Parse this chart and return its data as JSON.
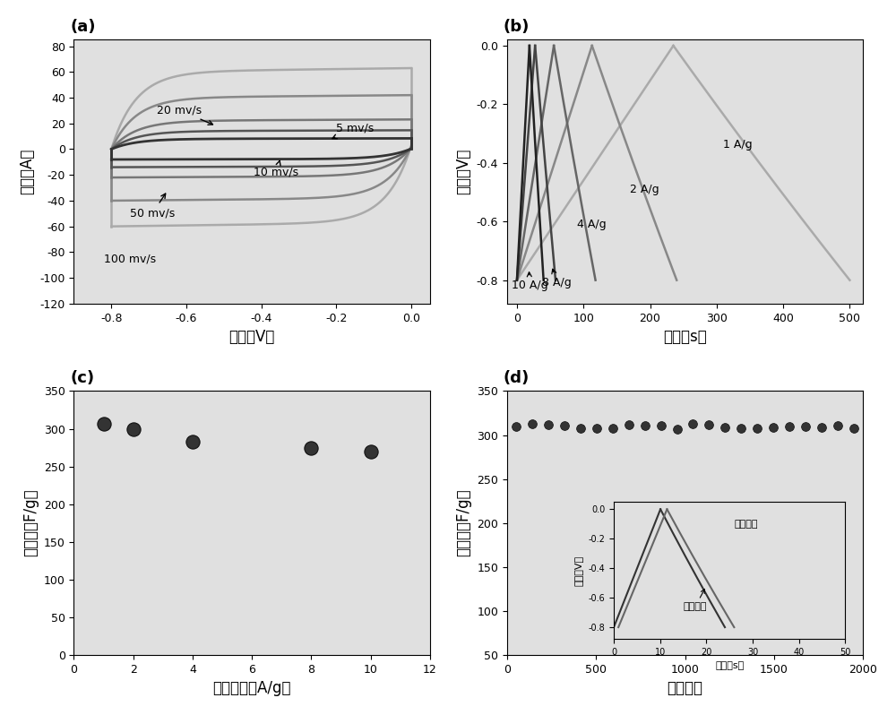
{
  "panel_a": {
    "title": "(a)",
    "xlabel": "电压（V）",
    "ylabel": "电流（A）",
    "xlim": [
      -0.9,
      0.05
    ],
    "ylim": [
      -120,
      85
    ],
    "yticks": [
      80,
      60,
      40,
      20,
      0,
      -20,
      -40,
      -60,
      -80,
      -100,
      -120
    ],
    "xticks": [
      -0.8,
      -0.6,
      -0.4,
      -0.2,
      0.0
    ],
    "scan_rates": [
      5,
      10,
      20,
      50,
      100
    ],
    "labels": [
      "5 mv/s",
      "10 mv/s",
      "20 mv/s",
      "50 mv/s",
      "100 mv/s"
    ],
    "scales": [
      8,
      14,
      22,
      40,
      60
    ]
  },
  "panel_b": {
    "title": "(b)",
    "xlabel": "时间（s）",
    "ylabel": "电压（V）",
    "xlim": [
      -15,
      520
    ],
    "ylim": [
      -0.88,
      0.02
    ],
    "yticks": [
      0.0,
      -0.2,
      -0.4,
      -0.6,
      -0.8
    ],
    "xticks": [
      0,
      100,
      200,
      300,
      400,
      500
    ],
    "t_max": [
      500,
      240,
      120,
      58,
      40
    ],
    "labels": [
      "1 A/g",
      "2 A/g",
      "4 A/g",
      "8 A/g",
      "10 A/g"
    ]
  },
  "panel_c": {
    "title": "(c)",
    "xlabel": "电流密度（A/g）",
    "ylabel": "电容比（F/g）",
    "xlim": [
      0,
      12
    ],
    "ylim": [
      0,
      350
    ],
    "yticks": [
      0,
      50,
      100,
      150,
      200,
      250,
      300,
      350
    ],
    "xticks": [
      0,
      2,
      4,
      6,
      8,
      10,
      12
    ],
    "x_data": [
      1,
      2,
      4,
      8,
      10
    ],
    "y_data": [
      307,
      299,
      283,
      275,
      270
    ]
  },
  "panel_d": {
    "title": "(d)",
    "xlabel": "循环次数",
    "ylabel": "电容比（F/g）",
    "xlim": [
      0,
      2000
    ],
    "ylim": [
      50,
      350
    ],
    "yticks": [
      50,
      100,
      150,
      200,
      250,
      300,
      350
    ],
    "xticks": [
      0,
      500,
      1000,
      1500,
      2000
    ],
    "cycle_y": 310,
    "inset": {
      "xlabel": "时间（s）",
      "ylabel": "电压（V）",
      "xlim": [
        0,
        50
      ],
      "ylim": [
        -0.88,
        0.05
      ],
      "xticks": [
        0,
        10,
        20,
        30,
        40,
        50
      ],
      "yticks": [
        0.0,
        -0.2,
        -0.4,
        -0.6,
        -0.8
      ],
      "label_before": "长循环前",
      "label_after": "长循环后"
    }
  },
  "background_color": "#e0e0e0",
  "line_colors": [
    "#222222",
    "#333333",
    "#555555",
    "#777777",
    "#999999"
  ]
}
